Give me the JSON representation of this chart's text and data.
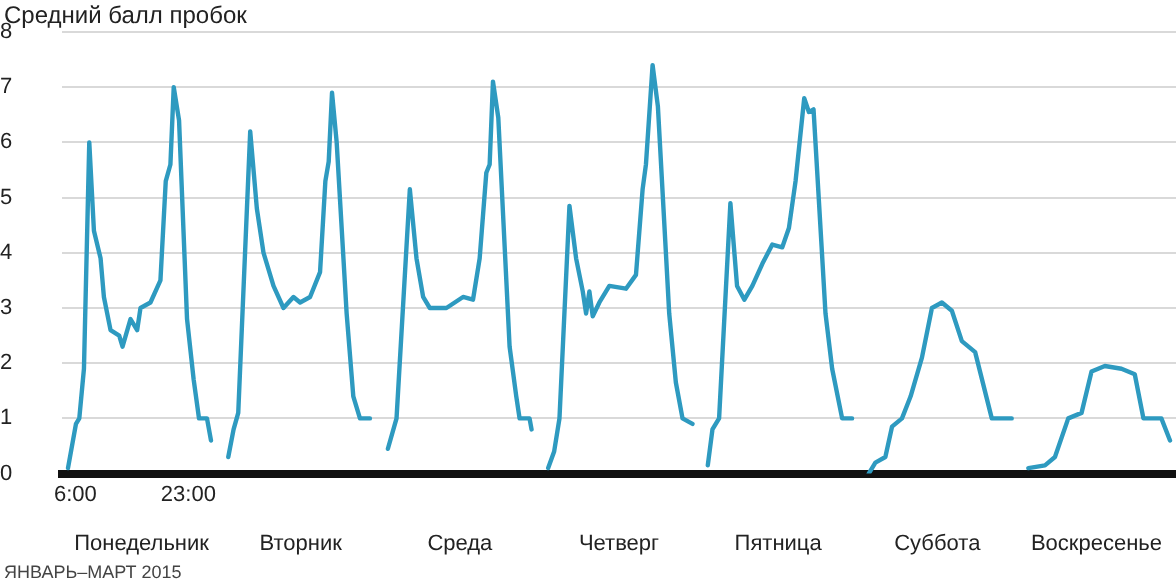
{
  "chart_data": {
    "type": "line",
    "ylabel": "Средний балл пробок",
    "annotations": [
      "Понедельник",
      "Вторник",
      "Среда",
      "Четверг",
      "Пятница",
      "Суббота",
      "Воскресенье",
      "ЯНВАРЬ–МАРТ 2015"
    ],
    "xlim": [
      4,
      171.5
    ],
    "xticks": [
      {
        "value": 6,
        "label": "6:00"
      },
      {
        "value": 23,
        "label": "23:00"
      }
    ],
    "ylim": [
      0,
      8
    ],
    "yticks": [
      0,
      1,
      2,
      3,
      4,
      5,
      6,
      7,
      8
    ],
    "grid": "y",
    "legend": false,
    "marker": "none",
    "line_style": "solid",
    "series": [
      {
        "color": "#2e9ac0",
        "x": [
          4.9,
          6.1,
          6.6,
          7.3,
          8.1,
          8.8,
          9.8,
          10.3,
          11.3,
          12.6,
          13.1,
          14.3,
          15.3,
          15.8,
          17.3,
          18.8,
          19.6,
          20.3,
          20.8,
          21.6,
          22.8,
          23.8,
          24.6,
          25.8,
          26.4,
          27.5,
          29.0,
          29.8,
          30.5,
          32.3,
          33.3,
          34.3,
          35.8,
          37.3,
          38.8,
          39.8,
          41.3,
          42.8,
          43.6,
          44.1,
          44.6,
          45.3,
          46.8,
          47.8,
          48.8,
          50.3,
          51.5,
          53.0,
          54.3,
          56.3,
          57.3,
          58.3,
          59.3,
          61.8,
          64.3,
          65.8,
          66.8,
          67.8,
          68.3,
          68.8,
          69.6,
          71.3,
          72.3,
          72.8,
          74.3,
          74.6,
          76,
          77.1,
          78.0,
          78.8,
          80.3,
          81.3,
          82.3,
          82.8,
          83.3,
          83.8,
          84.8,
          86.3,
          88.8,
          90.3,
          91.3,
          91.8,
          92.8,
          93.6,
          95.3,
          96.3,
          97.3,
          98.8,
          100,
          101.1,
          101.8,
          102.8,
          104.5,
          105.5,
          106.6,
          107.8,
          109.3,
          110.8,
          112.3,
          113.3,
          114.3,
          115.6,
          116.3,
          117.0,
          118.8,
          119.8,
          121.3,
          122.8,
          124,
          125.3,
          126.3,
          127.8,
          128.8,
          130.3,
          131.6,
          133.3,
          134.8,
          136.3,
          137.8,
          139.3,
          141.3,
          143.8,
          146.8,
          148,
          149.3,
          151.8,
          153.3,
          155.3,
          157.3,
          158.8,
          160.8,
          163.3,
          165.3,
          166.6,
          169.3,
          170.6
        ],
        "values": [
          0.1,
          0.9,
          1.0,
          1.9,
          6.0,
          4.4,
          3.9,
          3.2,
          2.6,
          2.5,
          2.3,
          2.8,
          2.6,
          3.0,
          3.1,
          3.5,
          5.3,
          5.6,
          7.0,
          6.4,
          2.8,
          1.7,
          1.0,
          1.0,
          0.6,
          null,
          0.3,
          0.8,
          1.1,
          6.2,
          4.8,
          4.0,
          3.4,
          3.0,
          3.2,
          3.1,
          3.2,
          3.65,
          5.3,
          5.65,
          6.9,
          6.0,
          2.9,
          1.4,
          1.0,
          1.0,
          null,
          0.45,
          1.0,
          5.15,
          3.9,
          3.2,
          3.0,
          3.0,
          3.2,
          3.15,
          3.9,
          5.45,
          5.6,
          7.1,
          6.45,
          2.3,
          1.4,
          1.0,
          1.0,
          0.8,
          null,
          0.1,
          0.4,
          1.0,
          4.85,
          3.9,
          3.3,
          2.9,
          3.3,
          2.85,
          3.1,
          3.4,
          3.35,
          3.6,
          5.15,
          5.6,
          7.4,
          6.65,
          2.9,
          1.65,
          1.0,
          0.9,
          null,
          0.15,
          0.8,
          1.0,
          4.9,
          3.4,
          3.15,
          3.4,
          3.8,
          4.15,
          4.1,
          4.45,
          5.3,
          6.8,
          6.55,
          6.6,
          2.9,
          1.9,
          1.0,
          1.0,
          null,
          0.0,
          0.2,
          0.3,
          0.85,
          1.0,
          1.4,
          2.1,
          3.0,
          3.1,
          2.95,
          2.4,
          2.2,
          1.0,
          1.0,
          null,
          0.1,
          0.15,
          0.3,
          1.0,
          1.1,
          1.85,
          1.95,
          1.9,
          1.8,
          1.0,
          1.0,
          0.6
        ]
      }
    ]
  }
}
